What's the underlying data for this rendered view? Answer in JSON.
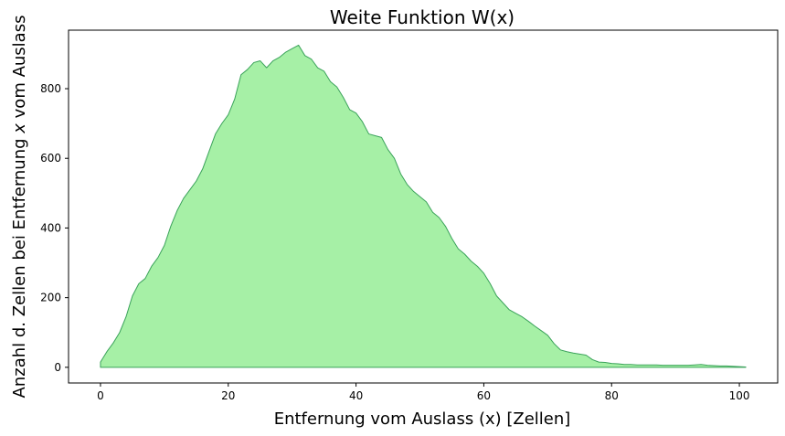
{
  "chart_data": {
    "type": "area",
    "title": "Weite Funktion W(x)",
    "xlabel": "Entfernung vom Auslass (x) [Zellen]",
    "ylabel_parts": [
      "Anzahl d. Zellen bei Entfernung ",
      "x",
      " vom Auslass"
    ],
    "xlim": [
      -5,
      106
    ],
    "ylim": [
      -45,
      968
    ],
    "xticks": [
      0,
      20,
      40,
      60,
      80,
      100
    ],
    "yticks": [
      0,
      200,
      400,
      600,
      800
    ],
    "fill_color": "#a6f0a6",
    "line_color": "#3aa25a",
    "grid": false,
    "x": [
      0,
      1,
      2,
      3,
      4,
      5,
      6,
      7,
      8,
      9,
      10,
      11,
      12,
      13,
      14,
      15,
      16,
      17,
      18,
      19,
      20,
      21,
      22,
      23,
      24,
      25,
      26,
      27,
      28,
      29,
      30,
      31,
      32,
      33,
      34,
      35,
      36,
      37,
      38,
      39,
      40,
      41,
      42,
      43,
      44,
      45,
      46,
      47,
      48,
      49,
      50,
      51,
      52,
      53,
      54,
      55,
      56,
      57,
      58,
      59,
      60,
      61,
      62,
      63,
      64,
      65,
      66,
      67,
      68,
      69,
      70,
      71,
      72,
      73,
      74,
      75,
      76,
      77,
      78,
      79,
      80,
      81,
      82,
      83,
      84,
      85,
      86,
      87,
      88,
      89,
      90,
      91,
      92,
      93,
      94,
      95,
      96,
      97,
      98,
      99,
      100,
      101
    ],
    "values": [
      15,
      45,
      70,
      100,
      145,
      205,
      240,
      255,
      290,
      315,
      350,
      405,
      450,
      485,
      510,
      535,
      570,
      620,
      670,
      700,
      725,
      770,
      840,
      855,
      875,
      880,
      860,
      880,
      890,
      905,
      915,
      925,
      895,
      885,
      860,
      850,
      820,
      805,
      775,
      740,
      730,
      705,
      670,
      665,
      660,
      625,
      600,
      555,
      525,
      505,
      490,
      475,
      445,
      430,
      405,
      370,
      340,
      325,
      305,
      290,
      270,
      240,
      205,
      185,
      165,
      155,
      145,
      132,
      118,
      105,
      92,
      68,
      50,
      45,
      41,
      38,
      35,
      22,
      15,
      14,
      11,
      10,
      8,
      8,
      7,
      7,
      7,
      7,
      6,
      6,
      6,
      6,
      6,
      7,
      8,
      6,
      5,
      4,
      4,
      3,
      2,
      1
    ]
  }
}
